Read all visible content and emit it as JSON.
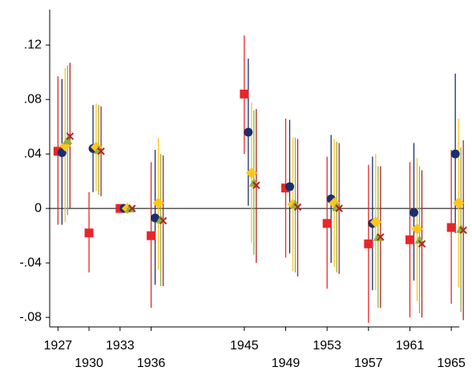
{
  "chart_data": {
    "type": "coefplot",
    "x": [
      1927,
      1930,
      1933,
      1936,
      1945,
      1949,
      1953,
      1957,
      1961,
      1965
    ],
    "xlim": [
      1926.2,
      1967
    ],
    "xticks": [
      1927,
      1930,
      1933,
      1936,
      1945,
      1949,
      1953,
      1957,
      1961,
      1965
    ],
    "ylim": [
      -0.087,
      0.146
    ],
    "yticks": [
      {
        "value": -0.08,
        "label": "-.08"
      },
      {
        "value": -0.04,
        "label": "-.04"
      },
      0,
      {
        "value": 0.04,
        "label": ".04"
      },
      {
        "value": 0.08,
        "label": ".08"
      },
      {
        "value": 0.12,
        "label": ".12"
      }
    ],
    "hline": 0,
    "series": [
      {
        "color": "#e8262a",
        "marker": "square",
        "values": [
          0.042,
          -0.018,
          0,
          -0.02,
          0.084,
          0.015,
          -0.011,
          -0.026,
          -0.023,
          -0.014
        ],
        "low": [
          -0.012,
          -0.047,
          0,
          -0.073,
          0.04,
          -0.036,
          -0.059,
          -0.084,
          -0.08,
          -0.07
        ],
        "high": [
          0.097,
          0.012,
          0,
          0.034,
          0.127,
          0.066,
          0.038,
          0.032,
          0.034,
          0.043
        ]
      },
      {
        "color": "#1a2e6e",
        "marker": "circle",
        "values": [
          0.041,
          0.044,
          0,
          -0.007,
          0.056,
          0.016,
          0.007,
          -0.011,
          -0.003,
          0.04
        ],
        "low": [
          -0.012,
          0.012,
          0,
          -0.056,
          0.002,
          -0.033,
          -0.04,
          -0.06,
          -0.053,
          -0.018
        ],
        "high": [
          0.095,
          0.076,
          0,
          0.043,
          0.11,
          0.065,
          0.054,
          0.038,
          0.048,
          0.099
        ]
      },
      {
        "color": "#ffc61a",
        "marker": "diamond",
        "values": [
          0.046,
          0.045,
          0,
          0.004,
          0.026,
          0.003,
          0.004,
          -0.01,
          -0.015,
          0.004
        ],
        "low": [
          -0.01,
          0.013,
          0,
          -0.045,
          -0.025,
          -0.046,
          -0.043,
          -0.06,
          -0.068,
          -0.058
        ],
        "high": [
          0.103,
          0.077,
          0,
          0.052,
          0.078,
          0.052,
          0.051,
          0.04,
          0.037,
          0.066
        ]
      },
      {
        "color": "#8cb43c",
        "marker": "triangle",
        "values": [
          0.05,
          0.043,
          0,
          -0.008,
          0.019,
          0.003,
          0.001,
          -0.021,
          -0.023,
          -0.015
        ],
        "low": [
          -0.005,
          0.01,
          0,
          -0.057,
          -0.034,
          -0.047,
          -0.047,
          -0.073,
          -0.077,
          -0.076
        ],
        "high": [
          0.105,
          0.076,
          0,
          0.04,
          0.072,
          0.052,
          0.049,
          0.031,
          0.031,
          0.045
        ]
      },
      {
        "color": "#b22222",
        "marker": "x",
        "values": [
          0.053,
          0.042,
          0,
          -0.009,
          0.017,
          0.001,
          0,
          -0.021,
          -0.026,
          -0.016
        ],
        "low": [
          0,
          0.009,
          0,
          -0.057,
          -0.04,
          -0.05,
          -0.048,
          -0.073,
          -0.08,
          -0.082
        ],
        "high": [
          0.107,
          0.075,
          0,
          0.039,
          0.073,
          0.051,
          0.048,
          0.031,
          0.028,
          0.05
        ]
      }
    ]
  }
}
